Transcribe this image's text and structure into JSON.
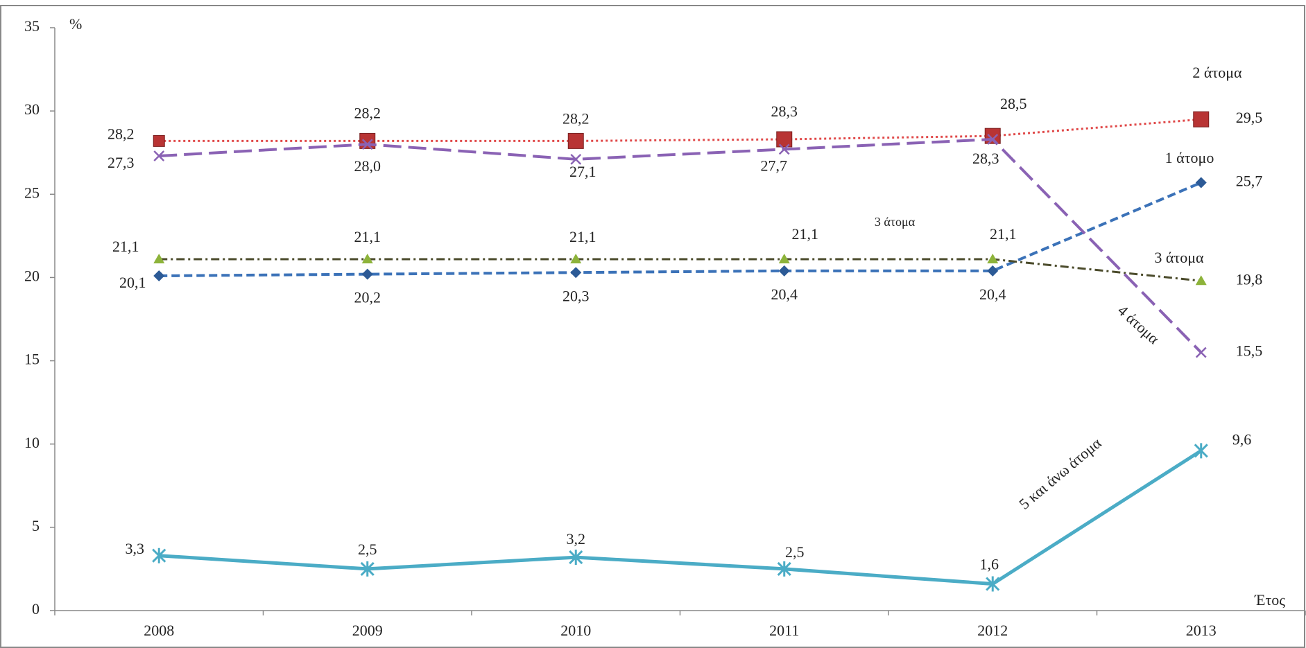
{
  "chart_data": {
    "type": "line",
    "y_label": "%",
    "x_label": "Έτος",
    "categories": [
      "2008",
      "2009",
      "2010",
      "2011",
      "2012",
      "2013"
    ],
    "ylim": [
      0,
      35
    ],
    "yticks": [
      0,
      5,
      10,
      15,
      20,
      25,
      30,
      35
    ],
    "series": [
      {
        "name": "1 άτομο",
        "color": "#3b72b8",
        "marker": "diamond",
        "dash": "dashed",
        "values": [
          20.1,
          20.2,
          20.3,
          20.4,
          20.4,
          25.7
        ],
        "value_labels": [
          "20,1",
          "20,2",
          "20,3",
          "20,4",
          "20,4",
          "25,7"
        ]
      },
      {
        "name": "2 άτομα",
        "color": "#e04848",
        "marker_color": "#b83434",
        "marker": "square",
        "dash": "dotted",
        "values": [
          28.2,
          28.2,
          28.2,
          28.3,
          28.5,
          29.5
        ],
        "value_labels": [
          "28,2",
          "28,2",
          "28,2",
          "28,3",
          "28,5",
          "29,5"
        ]
      },
      {
        "name": "3 άτομα",
        "color": "#4b4b2b",
        "marker_color": "#8db33a",
        "marker": "triangle",
        "dash": "dashdot",
        "values": [
          21.1,
          21.1,
          21.1,
          21.1,
          21.1,
          19.8
        ],
        "value_labels": [
          "21,1",
          "21,1",
          "21,1",
          "21,1",
          "21,1",
          "19,8"
        ]
      },
      {
        "name": "4 άτομα",
        "color": "#8a62b4",
        "marker": "x",
        "dash": "longdash",
        "values": [
          27.3,
          28.0,
          27.1,
          27.7,
          28.3,
          15.5
        ],
        "value_labels": [
          "27,3",
          "28,0",
          "27,1",
          "27,7",
          "28,3",
          "15,5"
        ]
      },
      {
        "name": "5 και άνω άτομα",
        "color": "#4bacc6",
        "marker": "asterisk",
        "dash": "solid",
        "values": [
          3.3,
          2.5,
          3.2,
          2.5,
          1.6,
          9.6
        ],
        "value_labels": [
          "3,3",
          "2,5",
          "3,2",
          "2,5",
          "1,6",
          "9,6"
        ]
      }
    ],
    "annotations": [
      "3 άτομα"
    ]
  }
}
